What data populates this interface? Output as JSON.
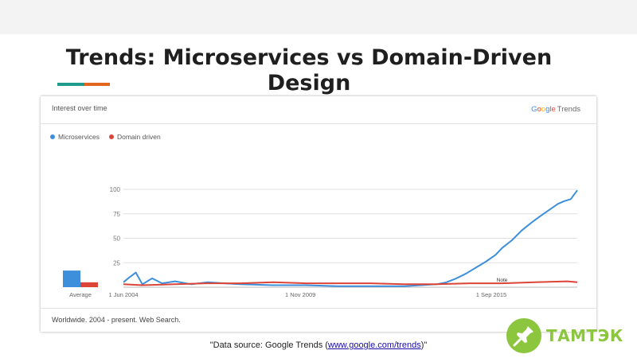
{
  "slide": {
    "title": "Trends: Microservices vs Domain-Driven Design",
    "source_prefix": "\"Data source: Google Trends (",
    "source_link": "www.google.com/trends",
    "source_suffix": ")\"",
    "brand": "ТАМТЭК",
    "colors": {
      "teal": "#1e9b8a",
      "orange": "#e3661f",
      "brand_green": "#8cc63f"
    }
  },
  "panel": {
    "title": "Interest over time",
    "logo_google": "Google",
    "logo_trends": "Trends",
    "footer": "Worldwide. 2004 - present. Web Search."
  },
  "chart_data": {
    "type": "line",
    "title": "Interest over time",
    "ylim": [
      0,
      100
    ],
    "yticks": [
      25,
      50,
      75,
      100
    ],
    "x_range": [
      2004.42,
      2018.3
    ],
    "xticks": [
      {
        "x": 2004.42,
        "label": "1 Jun 2004"
      },
      {
        "x": 2009.83,
        "label": "1 Nov 2009"
      },
      {
        "x": 2015.67,
        "label": "1 Sep 2015"
      }
    ],
    "grid": true,
    "legend_position": "top-left",
    "series": [
      {
        "name": "Microservices",
        "color": "#3d8fdb",
        "average": 17,
        "x": [
          2004.42,
          2004.6,
          2004.8,
          2005.0,
          2005.3,
          2005.6,
          2006.0,
          2006.5,
          2007.0,
          2007.5,
          2008.0,
          2009.0,
          2010.0,
          2011.0,
          2012.0,
          2013.0,
          2013.5,
          2014.0,
          2014.3,
          2014.6,
          2014.9,
          2015.2,
          2015.5,
          2015.8,
          2016.0,
          2016.3,
          2016.6,
          2016.9,
          2017.1,
          2017.4,
          2017.7,
          2017.9,
          2018.1,
          2018.3
        ],
        "values": [
          5,
          10,
          15,
          3,
          9,
          4,
          6,
          3,
          5,
          4,
          3,
          2,
          2,
          1,
          1,
          1,
          2,
          3,
          5,
          9,
          14,
          20,
          26,
          33,
          40,
          48,
          58,
          66,
          71,
          78,
          85,
          88,
          90,
          99
        ]
      },
      {
        "name": "Domain driven",
        "color": "#db4437",
        "average": 5,
        "x": [
          2004.42,
          2005.0,
          2006.0,
          2007.0,
          2008.0,
          2009.0,
          2010.0,
          2011.0,
          2012.0,
          2013.0,
          2014.0,
          2015.0,
          2016.0,
          2017.0,
          2018.0,
          2018.3
        ],
        "values": [
          3,
          2,
          3,
          4,
          4,
          5,
          4,
          4,
          4,
          3,
          3,
          4,
          4,
          5,
          6,
          5
        ]
      }
    ],
    "annotation": "Note",
    "average_label": "Average"
  }
}
